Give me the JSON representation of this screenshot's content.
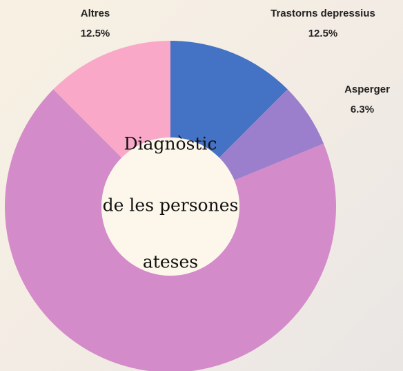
{
  "chart_data": {
    "type": "donut",
    "title": [
      "Diagnòstic",
      "de les persones",
      "ateses"
    ],
    "categories": [
      "Trastorns depressius",
      "Asperger",
      null,
      "Altres"
    ],
    "values": [
      12.5,
      6.3,
      68.7,
      12.5
    ],
    "value_labels": [
      "12.5%",
      "6.3%",
      null,
      "12.5%"
    ],
    "colors": [
      "#4472c4",
      "#9b7fcc",
      "#d48bc9",
      "#f9a8c8"
    ]
  }
}
